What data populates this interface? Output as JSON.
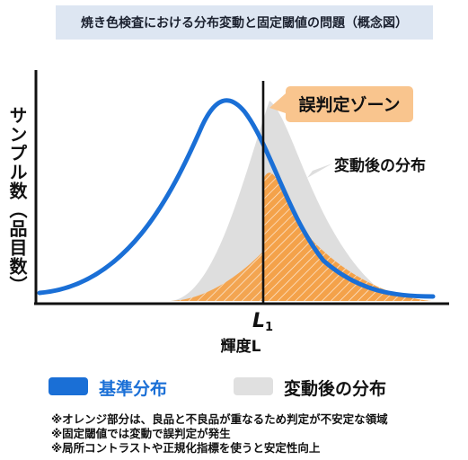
{
  "title": "焼き色検査における分布変動と固定閾値の問題（概念図）",
  "y_axis_label": "サンプル数（品目数）",
  "x_axis_label": "輝度L",
  "threshold_label": {
    "main": "L",
    "sub": "1"
  },
  "callout_label": "誤判定ゾーン",
  "shifted_distribution_label": "変動後の分布",
  "legend": [
    {
      "label": "基準分布",
      "color": "#1a6fd6"
    },
    {
      "label": "変動後の分布",
      "color": "#e0e0e0"
    }
  ],
  "notes": [
    "※オレンジ部分は、良品と不良品が重なるため判定が不安定な領域",
    "※固定閾値では変動で誤判定が発生",
    "※局所コントラストや正規化指標を使うと安定性向上"
  ],
  "colors": {
    "baseline_curve": "#1a6fd6",
    "shifted_fill": "#dedede",
    "misjudgment_zone": "#f4a24a",
    "callout_bg": "#f9c58e",
    "title_bg": "#dde6f2"
  }
}
